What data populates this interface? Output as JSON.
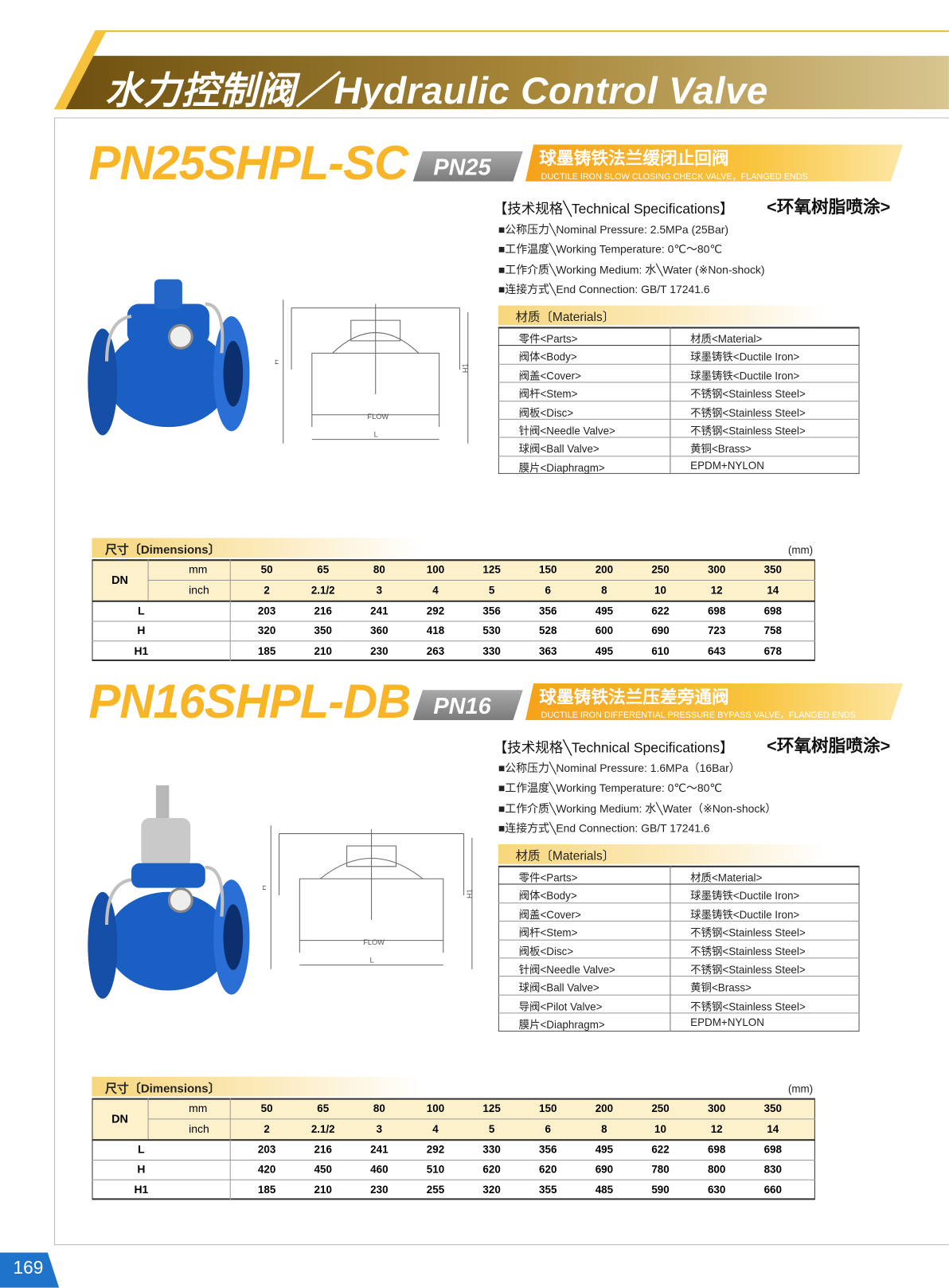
{
  "header": {
    "title": "水力控制阀／Hydraulic Control Valve"
  },
  "products": [
    {
      "model": "PN25SHPL-SC",
      "pn": "PN25",
      "name_cn": "球墨铸铁法兰缓闭止回阀",
      "name_en": "DUCTILE IRON  SLOW CLOSING CHECK VALVE，FLANGED ENDS",
      "spec_title": "【技术规格╲Technical Specifications】",
      "coating": "<环氧树脂喷涂>",
      "specs": [
        "■公称压力╲Nominal Pressure: 2.5MPa (25Bar)",
        "■工作温度╲Working Temperature: 0℃～80℃",
        "■工作介质╲Working Medium: 水╲Water (※Non-shock)",
        "■连接方式╲End Connection: GB/T 17241.6"
      ],
      "materials_title": "材质〔Materials〕",
      "materials_header": [
        "零件<Parts>",
        "材质<Material>"
      ],
      "materials": [
        [
          "阀体<Body>",
          "球墨铸铁<Ductile Iron>"
        ],
        [
          "阀盖<Cover>",
          "球墨铸铁<Ductile Iron>"
        ],
        [
          "阀杆<Stem>",
          "不锈钢<Stainless Steel>"
        ],
        [
          "阀板<Disc>",
          "不锈钢<Stainless Steel>"
        ],
        [
          "针阀<Needle Valve>",
          "不锈钢<Stainless Steel>"
        ],
        [
          "球阀<Ball Valve>",
          "黄铜<Brass>"
        ],
        [
          "膜片<Diaphragm>",
          "EPDM+NYLON"
        ]
      ],
      "drawing_labels": {
        "flow": "FLOW",
        "length": "L",
        "height": "H",
        "height1": "H1"
      },
      "dimensions_title": "尺寸〔Dimensions〕",
      "unit": "(mm)",
      "dimensions": {
        "dn_label": "DN",
        "mm_label": "mm",
        "inch_label": "inch",
        "mm": [
          50,
          65,
          80,
          100,
          125,
          150,
          200,
          250,
          300,
          350
        ],
        "inch": [
          "2",
          "2.1/2",
          "3",
          "4",
          "5",
          "6",
          "8",
          "10",
          "12",
          "14"
        ],
        "rows": [
          {
            "label": "L",
            "values": [
              203,
              216,
              241,
              292,
              356,
              356,
              495,
              622,
              698,
              698
            ]
          },
          {
            "label": "H",
            "values": [
              320,
              350,
              360,
              418,
              530,
              528,
              600,
              690,
              723,
              758
            ]
          },
          {
            "label": "H1",
            "values": [
              185,
              210,
              230,
              263,
              330,
              363,
              495,
              610,
              643,
              678
            ]
          }
        ]
      }
    },
    {
      "model": "PN16SHPL-DB",
      "pn": "PN16",
      "name_cn": "球墨铸铁法兰压差旁通阀",
      "name_en": "DUCTILE IRON  DIFFERENTIAL PRESSURE BYPASS VALVE，FLANGED ENDS",
      "spec_title": "【技术规格╲Technical Specifications】",
      "coating": "<环氧树脂喷涂>",
      "specs": [
        "■公称压力╲Nominal Pressure: 1.6MPa（16Bar）",
        "■工作温度╲Working Temperature: 0℃～80℃",
        "■工作介质╲Working Medium: 水╲Water（※Non-shock）",
        "■连接方式╲End Connection: GB/T 17241.6"
      ],
      "materials_title": "材质〔Materials〕",
      "materials_header": [
        "零件<Parts>",
        "材质<Material>"
      ],
      "materials": [
        [
          "阀体<Body>",
          "球墨铸铁<Ductile Iron>"
        ],
        [
          "阀盖<Cover>",
          "球墨铸铁<Ductile Iron>"
        ],
        [
          "阀杆<Stem>",
          "不锈钢<Stainless Steel>"
        ],
        [
          "阀板<Disc>",
          "不锈钢<Stainless Steel>"
        ],
        [
          "针阀<Needle Valve>",
          "不锈钢<Stainless Steel>"
        ],
        [
          "球阀<Ball Valve>",
          "黄铜<Brass>"
        ],
        [
          "导阀<Pilot Valve>",
          "不锈钢<Stainless Steel>"
        ],
        [
          "膜片<Diaphragm>",
          "EPDM+NYLON"
        ]
      ],
      "drawing_labels": {
        "flow": "FLOW",
        "length": "L",
        "height": "H",
        "height1": "H1"
      },
      "dimensions_title": "尺寸〔Dimensions〕",
      "unit": "(mm)",
      "dimensions": {
        "dn_label": "DN",
        "mm_label": "mm",
        "inch_label": "inch",
        "mm": [
          50,
          65,
          80,
          100,
          125,
          150,
          200,
          250,
          300,
          350
        ],
        "inch": [
          "2",
          "2.1/2",
          "3",
          "4",
          "5",
          "6",
          "8",
          "10",
          "12",
          "14"
        ],
        "rows": [
          {
            "label": "L",
            "values": [
              203,
              216,
              241,
              292,
              330,
              356,
              495,
              622,
              698,
              698
            ]
          },
          {
            "label": "H",
            "values": [
              420,
              450,
              460,
              510,
              620,
              620,
              690,
              780,
              800,
              830
            ]
          },
          {
            "label": "H1",
            "values": [
              185,
              210,
              230,
              255,
              320,
              355,
              485,
              590,
              630,
              660
            ]
          }
        ]
      }
    }
  ],
  "page_number": "169"
}
